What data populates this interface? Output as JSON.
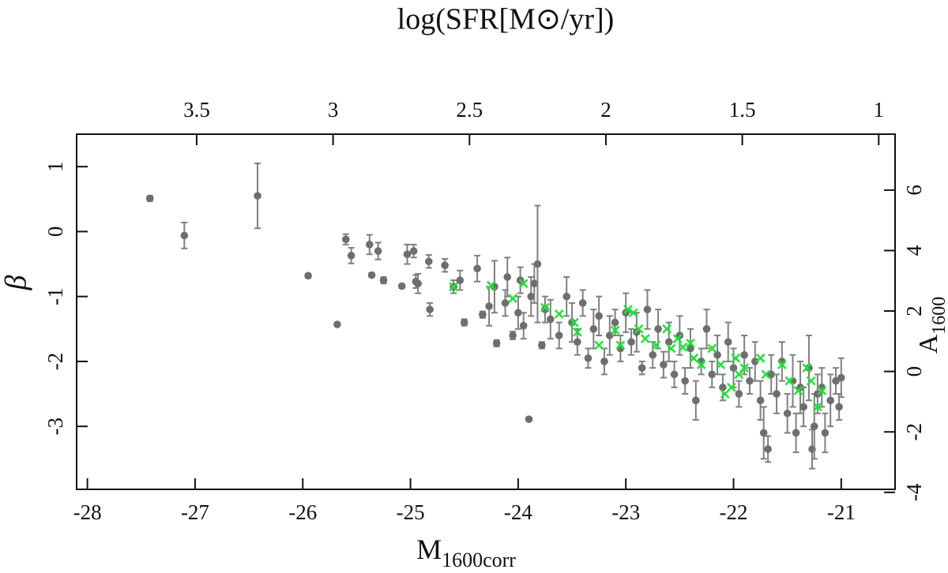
{
  "chart_data": {
    "type": "scatter",
    "title": "log(SFR[M⊙/yr])",
    "xlabel": {
      "text": "M",
      "sub": "1600corr"
    },
    "ylabel": "β",
    "y2label": {
      "text": "A",
      "sub": "1600"
    },
    "xlim": [
      -28.1,
      -20.5
    ],
    "xticks": [
      -28,
      -27,
      -26,
      -25,
      -24,
      -23,
      -22,
      -21
    ],
    "x2lim": [
      3.94,
      0.94
    ],
    "x2ticks": [
      3.5,
      3,
      2.5,
      2,
      1.5,
      1
    ],
    "ylim": [
      -3.97,
      1.5
    ],
    "yticks": [
      1,
      0,
      -1,
      -2,
      -3
    ],
    "y2lim": [
      -3.9,
      7.85
    ],
    "y2ticks": [
      6,
      4,
      2,
      0,
      -2,
      -4
    ],
    "series": [
      {
        "color": "#6e6e6e",
        "marker": "circle",
        "x": [
          -27.42,
          -27.1,
          -26.42,
          -25.95,
          -25.68,
          -25.6,
          -25.55,
          -25.38,
          -25.36,
          -25.3,
          -25.25,
          -25.08,
          -25.03,
          -24.97,
          -24.95,
          -24.93,
          -24.83,
          -24.82,
          -24.68,
          -24.6,
          -24.54,
          -24.5,
          -24.38,
          -24.33,
          -24.27,
          -24.22,
          -24.2,
          -24.12,
          -24.1,
          -24.05,
          -24.0,
          -23.98,
          -23.95,
          -23.9,
          -23.88,
          -23.85,
          -23.82,
          -23.78,
          -23.75,
          -23.7,
          -23.62,
          -23.55,
          -23.5,
          -23.45,
          -23.4,
          -23.35,
          -23.3,
          -23.25,
          -23.2,
          -23.15,
          -23.1,
          -23.05,
          -23.0,
          -22.95,
          -22.9,
          -22.85,
          -22.8,
          -22.75,
          -22.7,
          -22.65,
          -22.6,
          -22.55,
          -22.5,
          -22.45,
          -22.4,
          -22.35,
          -22.3,
          -22.25,
          -22.2,
          -22.15,
          -22.1,
          -22.05,
          -22.0,
          -21.95,
          -21.9,
          -21.85,
          -21.8,
          -21.75,
          -21.72,
          -21.68,
          -21.65,
          -21.6,
          -21.55,
          -21.5,
          -21.45,
          -21.42,
          -21.38,
          -21.35,
          -21.3,
          -21.27,
          -21.25,
          -21.22,
          -21.18,
          -21.15,
          -21.1,
          -21.05,
          -21.02,
          -21.0
        ],
        "y": [
          0.51,
          -0.06,
          0.55,
          -0.68,
          -1.43,
          -0.12,
          -0.37,
          -0.2,
          -0.67,
          -0.3,
          -0.75,
          -0.84,
          -0.35,
          -0.3,
          -0.77,
          -0.8,
          -0.46,
          -1.2,
          -0.52,
          -0.85,
          -0.75,
          -1.4,
          -0.57,
          -1.28,
          -1.15,
          -0.85,
          -1.72,
          -1.1,
          -0.7,
          -1.6,
          -1.25,
          -0.75,
          -1.45,
          -2.89,
          -1.0,
          -0.8,
          -0.5,
          -1.75,
          -1.2,
          -1.35,
          -1.6,
          -1.0,
          -1.4,
          -1.7,
          -1.1,
          -1.95,
          -1.5,
          -1.3,
          -2.0,
          -1.6,
          -1.4,
          -1.8,
          -1.25,
          -1.7,
          -1.55,
          -2.1,
          -1.2,
          -1.9,
          -1.5,
          -2.05,
          -1.7,
          -2.2,
          -1.6,
          -2.3,
          -1.8,
          -2.6,
          -2.0,
          -1.5,
          -2.2,
          -1.9,
          -2.4,
          -1.7,
          -2.1,
          -2.5,
          -1.9,
          -2.3,
          -2.0,
          -2.6,
          -3.1,
          -3.35,
          -2.2,
          -2.5,
          -2.0,
          -2.8,
          -2.3,
          -3.1,
          -2.4,
          -2.7,
          -2.1,
          -3.35,
          -3.0,
          -2.5,
          -2.4,
          -3.1,
          -2.6,
          -2.3,
          -2.7,
          -2.25
        ],
        "yerr": [
          0.04,
          0.2,
          0.5,
          0.03,
          0,
          0.08,
          0.12,
          0.15,
          0.03,
          0.13,
          0.05,
          0.03,
          0.15,
          0.1,
          0.1,
          0.15,
          0.1,
          0.1,
          0.1,
          0.1,
          0.15,
          0.05,
          0.2,
          0.05,
          0.3,
          0.4,
          0.05,
          0.2,
          0.3,
          0.06,
          0.25,
          0.2,
          0.2,
          0,
          0.3,
          0.3,
          0.9,
          0.05,
          0.2,
          0.3,
          0.2,
          0.3,
          0.3,
          0.2,
          0.2,
          0.15,
          0.3,
          0.3,
          0.2,
          0.3,
          0.2,
          0.2,
          0.3,
          0.2,
          0.3,
          0.1,
          0.3,
          0.2,
          0.3,
          0.2,
          0.3,
          0.2,
          0.3,
          0.2,
          0.3,
          0.3,
          0.2,
          0.3,
          0.2,
          0.3,
          0.2,
          0.3,
          0.3,
          0.2,
          0.3,
          0.2,
          0.3,
          0.3,
          0.4,
          0.2,
          0.3,
          0.3,
          0.3,
          0.3,
          0.4,
          0.3,
          0.4,
          0.3,
          0.5,
          0.3,
          0.5,
          0.3,
          0.3,
          0.3,
          0.4,
          0.2,
          0.2,
          0.3
        ]
      },
      {
        "color": "#22e03a",
        "marker": "cross",
        "x": [
          -24.6,
          -24.25,
          -24.05,
          -23.95,
          -23.75,
          -23.62,
          -23.48,
          -23.45,
          -23.25,
          -23.1,
          -23.05,
          -22.98,
          -22.93,
          -22.88,
          -22.82,
          -22.72,
          -22.62,
          -22.58,
          -22.52,
          -22.47,
          -22.4,
          -22.37,
          -22.3,
          -22.2,
          -22.12,
          -22.08,
          -22.02,
          -21.98,
          -21.95,
          -21.9,
          -21.75,
          -21.7,
          -21.55,
          -21.48,
          -21.4,
          -21.32,
          -21.28,
          -21.22,
          -21.18
        ],
        "y": [
          -0.85,
          -0.83,
          -1.03,
          -0.8,
          -1.17,
          -1.27,
          -1.4,
          -1.55,
          -1.75,
          -1.52,
          -1.75,
          -1.2,
          -1.25,
          -1.5,
          -1.65,
          -1.75,
          -1.5,
          -1.8,
          -1.65,
          -1.78,
          -1.72,
          -1.95,
          -2.05,
          -1.8,
          -2.05,
          -2.5,
          -2.4,
          -1.95,
          -2.2,
          -2.1,
          -1.95,
          -2.2,
          -2.05,
          -2.3,
          -2.45,
          -2.1,
          -2.3,
          -2.7,
          -2.45
        ]
      }
    ]
  }
}
